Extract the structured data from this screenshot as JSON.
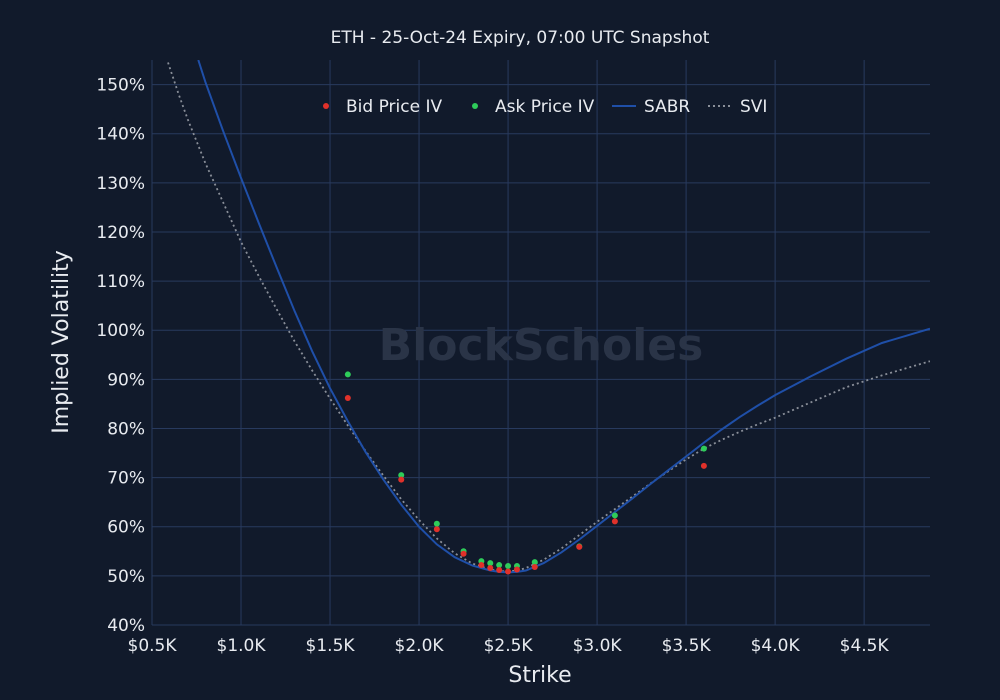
{
  "colors": {
    "background": "#111a2b",
    "grid": "#283a5e",
    "text": "#e8ebf0",
    "bid": "#e0312a",
    "ask": "#2ecc5a",
    "sabr": "#1f4fa8",
    "svi": "#8a8f99",
    "watermark": "#2a3447"
  },
  "watermark": "BlockScholes",
  "chart_data": {
    "type": "scatter",
    "title": "ETH - 25-Oct-24 Expiry, 07:00 UTC Snapshot",
    "xlabel": "Strike",
    "ylabel": "Implied Volatility",
    "xlim": [
      500,
      4870
    ],
    "ylim": [
      40,
      155
    ],
    "x_ticks": [
      500,
      1000,
      1500,
      2000,
      2500,
      3000,
      3500,
      4000,
      4500
    ],
    "x_tick_labels": [
      "$0.5K",
      "$1.0K",
      "$1.5K",
      "$2.0K",
      "$2.5K",
      "$3.0K",
      "$3.5K",
      "$4.0K",
      "$4.5K"
    ],
    "y_ticks": [
      40,
      50,
      60,
      70,
      80,
      90,
      100,
      110,
      120,
      130,
      140,
      150
    ],
    "y_tick_labels": [
      "40%",
      "50%",
      "60%",
      "70%",
      "80%",
      "90%",
      "100%",
      "110%",
      "120%",
      "130%",
      "140%",
      "150%"
    ],
    "grid": true,
    "legend_position": "top",
    "series": [
      {
        "name": "Bid Price IV",
        "kind": "markers",
        "color": "#e0312a",
        "x": [
          1600,
          1900,
          2100,
          2250,
          2350,
          2400,
          2450,
          2500,
          2550,
          2650,
          2900,
          3100,
          3600
        ],
        "y": [
          86.2,
          69.6,
          59.5,
          54.5,
          52.2,
          51.6,
          51.2,
          50.9,
          51.3,
          51.8,
          55.9,
          61.1,
          72.4
        ]
      },
      {
        "name": "Ask Price IV",
        "kind": "markers",
        "color": "#2ecc5a",
        "x": [
          1600,
          1900,
          2100,
          2250,
          2350,
          2400,
          2450,
          2500,
          2550,
          2650,
          2900,
          3100,
          3600
        ],
        "y": [
          91.0,
          70.5,
          60.6,
          55.0,
          53.0,
          52.6,
          52.2,
          52.0,
          52.0,
          52.8,
          56.0,
          62.3,
          75.9
        ]
      },
      {
        "name": "SABR",
        "kind": "line",
        "color": "#1f4fa8",
        "x": [
          760,
          800,
          900,
          1000,
          1100,
          1200,
          1300,
          1400,
          1500,
          1600,
          1700,
          1800,
          1900,
          2000,
          2100,
          2200,
          2300,
          2400,
          2450,
          2500,
          2550,
          2600,
          2700,
          2800,
          2900,
          3000,
          3100,
          3200,
          3300,
          3400,
          3500,
          3600,
          3700,
          3800,
          3900,
          4000,
          4200,
          4400,
          4600,
          4870
        ],
        "y": [
          155,
          150.5,
          140.5,
          131,
          121.8,
          112.8,
          104,
          95.7,
          88.2,
          81.5,
          75.2,
          69.6,
          64.5,
          60.0,
          56.4,
          53.8,
          52.1,
          51.1,
          50.8,
          50.7,
          50.8,
          51.1,
          52.6,
          54.8,
          57.4,
          60.2,
          63.0,
          65.8,
          68.7,
          71.5,
          74.3,
          77.1,
          79.8,
          82.3,
          84.6,
          86.8,
          90.6,
          94.2,
          97.4,
          100.3
        ]
      },
      {
        "name": "SVI",
        "kind": "line",
        "dash": "dotted",
        "color": "#8a8f99",
        "x": [
          590,
          650,
          700,
          800,
          900,
          1000,
          1100,
          1200,
          1300,
          1400,
          1500,
          1600,
          1700,
          1800,
          1900,
          2000,
          2100,
          2200,
          2300,
          2400,
          2450,
          2500,
          2550,
          2600,
          2700,
          2800,
          2900,
          3000,
          3100,
          3200,
          3300,
          3400,
          3500,
          3600,
          3700,
          3800,
          3900,
          4000,
          4200,
          4400,
          4600,
          4870
        ],
        "y": [
          154.5,
          148,
          143,
          134,
          126,
          118,
          111,
          104.3,
          97.8,
          91.8,
          86.1,
          80.6,
          75.4,
          70.4,
          65.6,
          61.4,
          57.6,
          54.6,
          52.5,
          51.3,
          51.0,
          50.9,
          51.1,
          51.6,
          53.3,
          55.6,
          58.3,
          61.0,
          63.6,
          66.2,
          68.8,
          71.3,
          73.7,
          75.9,
          77.7,
          79.3,
          80.8,
          82.2,
          85.3,
          88.4,
          90.8,
          93.7
        ]
      }
    ]
  }
}
